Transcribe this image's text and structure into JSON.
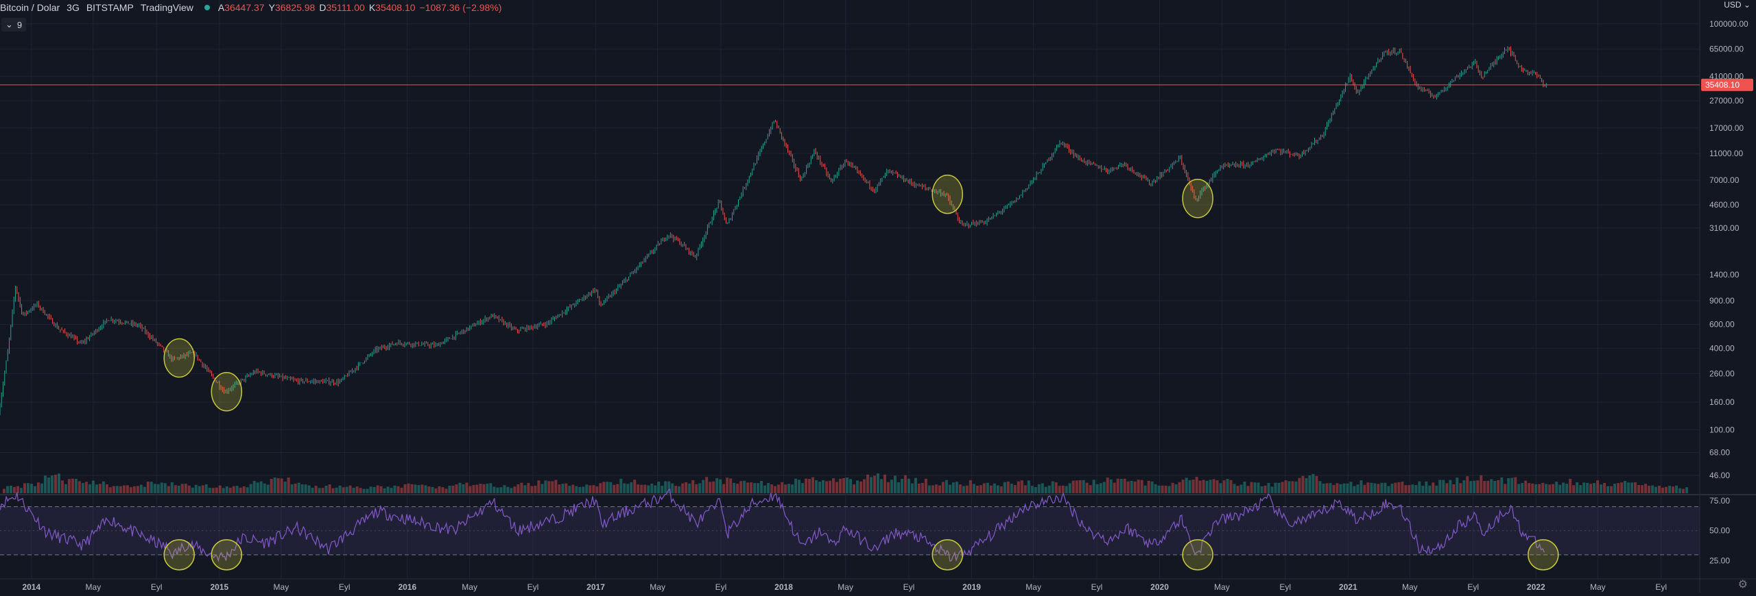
{
  "header": {
    "symbol": "Bitcoin / Dolar",
    "interval": "3G",
    "exchange": "BITSTAMP",
    "source": "TradingView",
    "ohlc": [
      {
        "k": "A",
        "v": "36447.37"
      },
      {
        "k": "Y",
        "v": "36825.98"
      },
      {
        "k": "D",
        "v": "35111.00"
      },
      {
        "k": "K",
        "v": "35408.10"
      }
    ],
    "change": "−1087.36 (−2.98%)"
  },
  "indicator_tag": {
    "collapse_icon": "chevron-down-icon",
    "label": "9"
  },
  "currency": "USD",
  "settings_icon": "gear-icon",
  "colors": {
    "background": "#131722",
    "up": "#26a69a",
    "down": "#ef5350",
    "rsi": "#7e57c2",
    "highlight": "#c8c83c",
    "grid": "#1f2433",
    "text": "#b2b5be"
  },
  "chart_data": [
    {
      "type": "line",
      "title": "Bitcoin / Dolar · 3G · BITSTAMP",
      "log_scale": true,
      "ylim": [
        36,
        150000
      ],
      "y_ticks": [
        100000,
        65000,
        41000,
        27000,
        17000,
        11000,
        7000,
        4600,
        3100,
        1400,
        900,
        600,
        400,
        260,
        160,
        100,
        68,
        46
      ],
      "y_tick_labels": [
        "100000.00",
        "65000.00",
        "41000.00",
        "27000.00",
        "17000.00",
        "11000.00",
        "7000.00",
        "4600.00",
        "3100.00",
        "1400.00",
        "900.00",
        "600.00",
        "400.00",
        "260.00",
        "160.00",
        "100.00",
        "68.00",
        "46.00"
      ],
      "x_ticks": [
        "2014",
        "May",
        "Eyl",
        "2015",
        "May",
        "Eyl",
        "2016",
        "May",
        "Eyl",
        "2017",
        "May",
        "Eyl",
        "2018",
        "May",
        "Eyl",
        "2019",
        "May",
        "Eyl",
        "2020",
        "May",
        "Eyl",
        "2021",
        "May",
        "Eyl",
        "2022",
        "May",
        "Eyl"
      ],
      "xlim": [
        "2013-11-01",
        "2022-11-15"
      ],
      "series": [
        {
          "x": [
            "2013-11-01",
            "2013-11-20",
            "2013-12-04",
            "2013-12-18",
            "2014-01-15",
            "2014-02-25",
            "2014-03-25",
            "2014-04-11",
            "2014-06-03",
            "2014-08-01",
            "2014-09-15",
            "2014-10-05",
            "2014-11-15",
            "2015-01-14",
            "2015-03-15",
            "2015-06-01",
            "2015-08-25",
            "2015-11-04",
            "2015-12-15",
            "2016-03-01",
            "2016-06-17",
            "2016-08-02",
            "2016-10-01",
            "2017-01-04",
            "2017-01-12",
            "2017-03-01",
            "2017-05-25",
            "2017-06-12",
            "2017-07-16",
            "2017-09-01",
            "2017-09-15",
            "2017-10-15",
            "2017-12-17",
            "2018-02-06",
            "2018-03-05",
            "2018-04-06",
            "2018-05-05",
            "2018-06-29",
            "2018-07-25",
            "2018-09-15",
            "2018-11-15",
            "2018-12-15",
            "2019-02-01",
            "2019-04-01",
            "2019-05-15",
            "2019-06-26",
            "2019-08-01",
            "2019-09-25",
            "2019-10-26",
            "2019-12-18",
            "2020-02-13",
            "2020-03-13",
            "2020-05-01",
            "2020-07-01",
            "2020-08-15",
            "2020-10-01",
            "2020-11-15",
            "2021-01-08",
            "2021-01-22",
            "2021-03-13",
            "2021-04-14",
            "2021-05-19",
            "2021-06-22",
            "2021-08-01",
            "2021-09-07",
            "2021-09-21",
            "2021-11-10",
            "2021-12-04",
            "2022-01-05",
            "2022-01-21"
          ],
          "y": [
            130,
            400,
            1150,
            700,
            850,
            560,
            480,
            430,
            660,
            590,
            400,
            330,
            370,
            190,
            270,
            230,
            225,
            390,
            440,
            420,
            700,
            540,
            610,
            1100,
            820,
            1250,
            2800,
            2500,
            1900,
            4900,
            3200,
            5700,
            19500,
            7000,
            11500,
            6800,
            9800,
            5900,
            8200,
            6500,
            5500,
            3250,
            3450,
            5000,
            8000,
            13500,
            10000,
            8200,
            9300,
            6600,
            10200,
            5000,
            8800,
            9200,
            11800,
            10600,
            15000,
            41000,
            30500,
            61000,
            63000,
            34000,
            29000,
            40000,
            52000,
            40500,
            68000,
            47000,
            42000,
            35400
          ]
        }
      ],
      "last_price_label": "35408.10",
      "highlight_circles": [
        "2014-10",
        "2015-01",
        "2018-11",
        "2020-03"
      ]
    },
    {
      "type": "bar",
      "title": "",
      "series": [
        {
          "values": [
            0.35,
            0.5,
            0.9,
            0.7,
            0.6,
            0.45,
            0.4,
            0.55,
            0.5,
            0.45,
            0.4,
            0.35,
            0.6,
            0.75,
            0.5,
            0.4,
            0.35,
            0.3,
            0.35,
            0.45,
            0.4,
            0.35,
            0.5,
            0.45,
            0.4,
            0.55,
            0.6,
            0.5,
            0.45,
            0.55,
            0.7,
            0.6,
            0.55,
            0.65,
            0.75,
            0.7,
            0.6,
            0.55,
            0.65,
            0.8,
            0.75,
            0.7,
            0.9,
            0.85,
            0.7,
            0.6,
            0.55,
            0.6,
            0.55,
            0.6,
            0.5,
            0.55,
            0.6,
            0.7,
            0.65,
            0.6,
            0.55,
            0.7,
            0.75,
            0.65,
            0.55,
            0.5,
            0.7,
            0.9,
            0.6,
            0.55,
            0.6,
            0.55,
            0.65,
            0.6,
            0.7,
            0.8,
            0.85,
            0.75,
            0.7,
            0.6,
            0.65,
            0.6,
            0.55,
            0.5,
            0.4,
            0.35
          ]
        }
      ]
    },
    {
      "type": "line",
      "title": "",
      "ylim": [
        10,
        80
      ],
      "y_ticks": [
        75,
        50,
        25
      ],
      "y_tick_labels": [
        "75.00",
        "50.00",
        "25.00"
      ],
      "bands": [
        70,
        50,
        30
      ],
      "series": [
        {
          "x": [
            "2013-11-01",
            "2013-12-04",
            "2014-02-01",
            "2014-04-11",
            "2014-06-01",
            "2014-08-01",
            "2014-09-20",
            "2014-10-05",
            "2014-11-01",
            "2014-12-15",
            "2015-01-14",
            "2015-02-15",
            "2015-04-01",
            "2015-06-01",
            "2015-08-01",
            "2015-10-01",
            "2015-11-04",
            "2016-01-15",
            "2016-04-01",
            "2016-06-15",
            "2016-08-02",
            "2016-10-15",
            "2017-01-01",
            "2017-01-12",
            "2017-03-01",
            "2017-05-25",
            "2017-07-16",
            "2017-09-01",
            "2017-09-15",
            "2017-11-01",
            "2017-12-17",
            "2018-02-06",
            "2018-03-15",
            "2018-04-06",
            "2018-05-01",
            "2018-06-29",
            "2018-08-01",
            "2018-09-15",
            "2018-11-20",
            "2018-12-15",
            "2019-02-01",
            "2019-04-15",
            "2019-06-26",
            "2019-08-15",
            "2019-09-25",
            "2019-11-01",
            "2019-12-18",
            "2020-02-13",
            "2020-03-13",
            "2020-04-20",
            "2020-06-01",
            "2020-07-30",
            "2020-09-05",
            "2020-10-20",
            "2020-12-15",
            "2021-01-22",
            "2021-03-13",
            "2021-04-14",
            "2021-05-19",
            "2021-06-22",
            "2021-08-10",
            "2021-09-07",
            "2021-09-21",
            "2021-11-10",
            "2021-12-04",
            "2022-01-05",
            "2022-01-21"
          ],
          "y": [
            72,
            80,
            48,
            38,
            60,
            46,
            36,
            30,
            40,
            30,
            28,
            44,
            40,
            52,
            35,
            55,
            66,
            58,
            50,
            74,
            50,
            60,
            76,
            55,
            66,
            80,
            56,
            74,
            48,
            72,
            80,
            36,
            50,
            38,
            52,
            34,
            48,
            46,
            28,
            30,
            44,
            70,
            78,
            50,
            42,
            52,
            38,
            60,
            30,
            58,
            62,
            76,
            56,
            60,
            74,
            58,
            72,
            70,
            36,
            34,
            56,
            62,
            48,
            70,
            50,
            38,
            32
          ]
        }
      ],
      "highlight_circles": [
        "2014-10",
        "2015-01",
        "2018-11",
        "2020-03",
        "2022-01"
      ]
    }
  ]
}
